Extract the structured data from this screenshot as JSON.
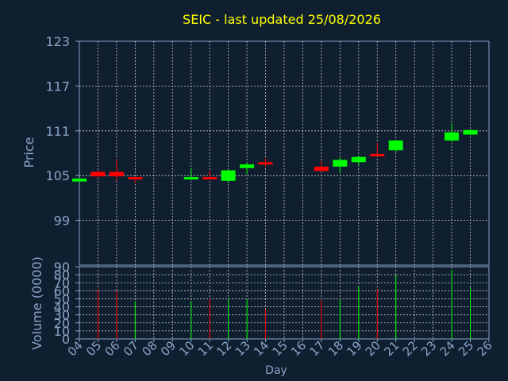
{
  "colors": {
    "background": "#0f1f30",
    "title": "#ffff00",
    "axis_text": "#8aa4c8",
    "frame": "#8aa4c8",
    "grid": "#c8c8c8",
    "up": "#00ff00",
    "down": "#ff0000"
  },
  "chart_data": [
    {
      "type": "candlestick",
      "title": "SEIC - last updated 25/08/2026",
      "ylabel": "Price",
      "ylim": [
        93,
        123
      ],
      "yticks": [
        "123",
        "117",
        "111",
        "105",
        "99"
      ],
      "grid": true,
      "candles": [
        {
          "day": "04",
          "open": 104.2,
          "high": 104.7,
          "low": 104.1,
          "close": 104.6
        },
        {
          "day": "05",
          "open": 105.5,
          "high": 105.7,
          "low": 104.8,
          "close": 104.9
        },
        {
          "day": "06",
          "open": 105.5,
          "high": 107.2,
          "low": 104.3,
          "close": 104.9
        },
        {
          "day": "07",
          "open": 104.8,
          "high": 104.9,
          "low": 104.0,
          "close": 104.5
        },
        {
          "day": "10",
          "open": 104.6,
          "high": 106.0,
          "low": 104.4,
          "close": 104.8
        },
        {
          "day": "11",
          "open": 104.8,
          "high": 105.7,
          "low": 104.5,
          "close": 104.6
        },
        {
          "day": "12",
          "open": 104.3,
          "high": 105.8,
          "low": 104.0,
          "close": 105.7
        },
        {
          "day": "13",
          "open": 106.0,
          "high": 106.8,
          "low": 105.2,
          "close": 106.5
        },
        {
          "day": "14",
          "open": 106.8,
          "high": 107.3,
          "low": 106.2,
          "close": 106.6
        },
        {
          "day": "17",
          "open": 106.2,
          "high": 107.0,
          "low": 105.5,
          "close": 105.6
        },
        {
          "day": "18",
          "open": 106.2,
          "high": 107.4,
          "low": 105.4,
          "close": 107.1
        },
        {
          "day": "19",
          "open": 106.8,
          "high": 107.7,
          "low": 106.4,
          "close": 107.5
        },
        {
          "day": "20",
          "open": 107.9,
          "high": 109.4,
          "low": 107.6,
          "close": 107.6
        },
        {
          "day": "21",
          "open": 108.4,
          "high": 109.8,
          "low": 108.2,
          "close": 109.7
        },
        {
          "day": "24",
          "open": 109.7,
          "high": 112.0,
          "low": 109.5,
          "close": 110.8
        },
        {
          "day": "25",
          "open": 110.5,
          "high": 111.2,
          "low": 110.4,
          "close": 111.1
        }
      ]
    },
    {
      "type": "bar",
      "ylabel": "Volume (0000)",
      "xlabel": "Day",
      "ylim": [
        0,
        90
      ],
      "yticks": [
        "90",
        "80",
        "70",
        "60",
        "50",
        "40",
        "30",
        "20",
        "10",
        "0"
      ],
      "categories": [
        "04",
        "05",
        "06",
        "07",
        "08",
        "09",
        "10",
        "11",
        "12",
        "13",
        "14",
        "15",
        "16",
        "17",
        "18",
        "19",
        "20",
        "21",
        "22",
        "23",
        "24",
        "25",
        "26"
      ],
      "bars": [
        {
          "day": "05",
          "value": 62,
          "direction": "down"
        },
        {
          "day": "06",
          "value": 60,
          "direction": "down"
        },
        {
          "day": "07",
          "value": 47,
          "direction": "up"
        },
        {
          "day": "10",
          "value": 47,
          "direction": "up"
        },
        {
          "day": "11",
          "value": 50,
          "direction": "down"
        },
        {
          "day": "12",
          "value": 50,
          "direction": "up"
        },
        {
          "day": "13",
          "value": 50,
          "direction": "up"
        },
        {
          "day": "14",
          "value": 37,
          "direction": "down"
        },
        {
          "day": "17",
          "value": 49,
          "direction": "down"
        },
        {
          "day": "18",
          "value": 49,
          "direction": "up"
        },
        {
          "day": "19",
          "value": 65,
          "direction": "up"
        },
        {
          "day": "20",
          "value": 62,
          "direction": "down"
        },
        {
          "day": "21",
          "value": 80,
          "direction": "up"
        },
        {
          "day": "24",
          "value": 86,
          "direction": "up"
        },
        {
          "day": "25",
          "value": 64,
          "direction": "up"
        }
      ]
    }
  ]
}
